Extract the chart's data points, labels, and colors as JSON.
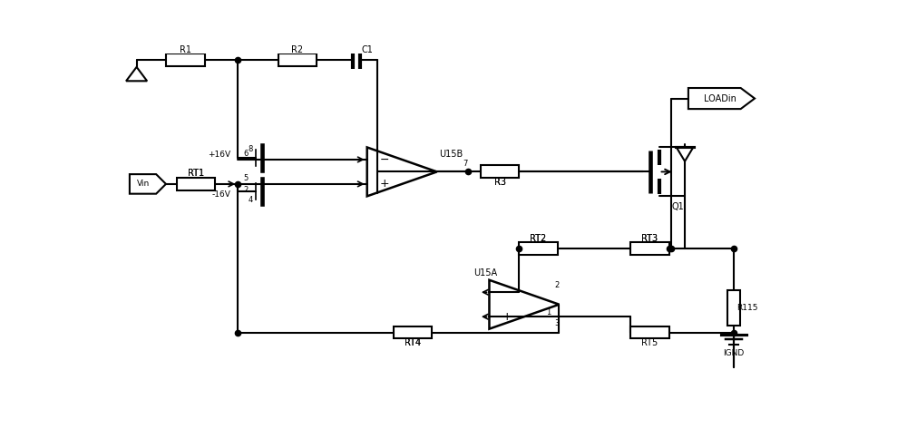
{
  "bg_color": "#ffffff",
  "lc": "#000000",
  "lw": 1.5,
  "fig_w": 10.0,
  "fig_h": 4.94,
  "dpi": 100,
  "xlim": [
    0,
    100
  ],
  "ylim": [
    0,
    49.4
  ]
}
